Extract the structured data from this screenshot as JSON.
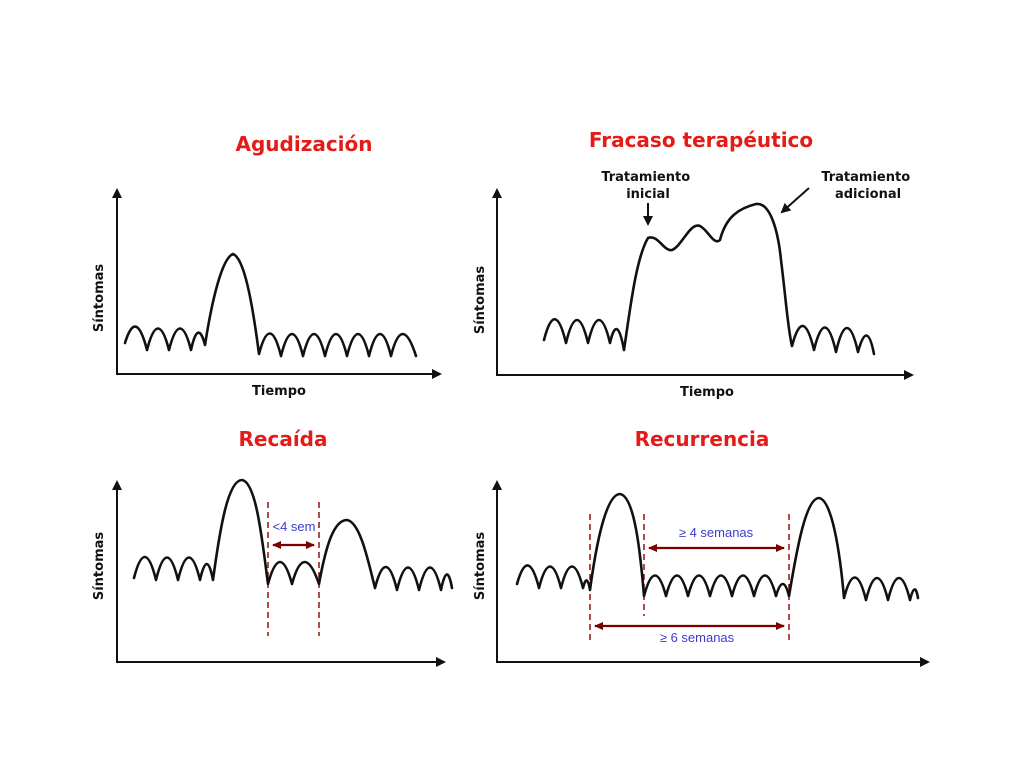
{
  "panels": [
    {
      "title": "Agudización",
      "y_label": "Síntomas",
      "x_label": "Tiempo"
    },
    {
      "title": "Fracaso terapéutico",
      "y_label": "Síntomas",
      "x_label": "Tiempo",
      "annotations": {
        "initial": [
          "Tratamiento",
          "inicial"
        ],
        "additional": [
          "Tratamiento",
          "adicional"
        ]
      }
    },
    {
      "title": "Recaída",
      "y_label": "Síntomas",
      "interval": "<4 sem"
    },
    {
      "title": "Recurrencia",
      "y_label": "Síntomas",
      "intervals": [
        "≥ 4 semanas",
        "≥ 6 semanas"
      ]
    }
  ],
  "colors": {
    "title": "#e41b17",
    "curve": "#111111",
    "interval_line": "#8b0000",
    "interval_text": "#3b3bd0"
  }
}
